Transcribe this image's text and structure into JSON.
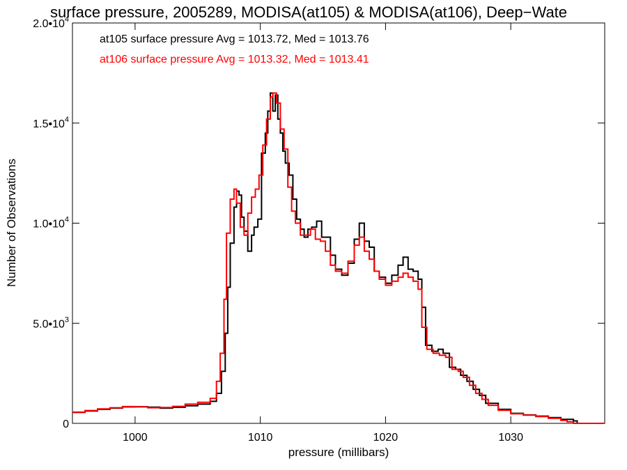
{
  "chart_data": {
    "type": "line",
    "step": true,
    "title": "surface pressure, 2005289, MODISA(at105) & MODISA(at106), Deep−Wate",
    "xlabel": "pressure (millibars)",
    "ylabel": "Number of Observations",
    "xlim": [
      995,
      1037.5
    ],
    "ylim": [
      0,
      20000
    ],
    "x_ticks": [
      1000,
      1010,
      1020,
      1030
    ],
    "x_tick_labels": [
      "1000",
      "1010",
      "1020",
      "1030"
    ],
    "y_ticks": [
      0,
      5000,
      10000,
      15000,
      20000
    ],
    "y_tick_labels": [
      {
        "mant": "0",
        "exp": ""
      },
      {
        "mant": "5.0•10",
        "exp": "3"
      },
      {
        "mant": "1.0•10",
        "exp": "4"
      },
      {
        "mant": "1.5•10",
        "exp": "4"
      },
      {
        "mant": "2.0•10",
        "exp": "4"
      }
    ],
    "grid": false,
    "legend_placement": "top-left",
    "series": [
      {
        "name": "at105 surface pressure Avg = 1013.72, Med = 1013.76",
        "color": "#000000",
        "points": [
          [
            995,
            550
          ],
          [
            996,
            620
          ],
          [
            997,
            700
          ],
          [
            998,
            760
          ],
          [
            999,
            820
          ],
          [
            1000,
            830
          ],
          [
            1001,
            810
          ],
          [
            1002,
            760
          ],
          [
            1003,
            800
          ],
          [
            1004,
            880
          ],
          [
            1005,
            960
          ],
          [
            1006,
            1100
          ],
          [
            1006.5,
            1500
          ],
          [
            1006.9,
            2600
          ],
          [
            1007.2,
            4500
          ],
          [
            1007.4,
            6800
          ],
          [
            1007.6,
            9000
          ],
          [
            1007.9,
            10800
          ],
          [
            1008.1,
            11600
          ],
          [
            1008.3,
            11400
          ],
          [
            1008.5,
            10300
          ],
          [
            1008.7,
            9600
          ],
          [
            1009.0,
            8600
          ],
          [
            1009.3,
            9400
          ],
          [
            1009.5,
            9800
          ],
          [
            1009.8,
            10200
          ],
          [
            1010.1,
            13500
          ],
          [
            1010.4,
            14500
          ],
          [
            1010.6,
            15600
          ],
          [
            1010.8,
            16500
          ],
          [
            1011.0,
            15600
          ],
          [
            1011.2,
            16400
          ],
          [
            1011.4,
            15200
          ],
          [
            1011.6,
            14500
          ],
          [
            1011.8,
            13600
          ],
          [
            1012.0,
            13000
          ],
          [
            1012.3,
            12400
          ],
          [
            1012.6,
            11200
          ],
          [
            1012.9,
            10200
          ],
          [
            1013.2,
            9700
          ],
          [
            1013.5,
            9300
          ],
          [
            1013.8,
            9700
          ],
          [
            1014.1,
            9800
          ],
          [
            1014.5,
            10100
          ],
          [
            1014.9,
            9300
          ],
          [
            1015.3,
            9300
          ],
          [
            1015.6,
            8400
          ],
          [
            1016.0,
            7700
          ],
          [
            1016.5,
            7400
          ],
          [
            1017.0,
            8000
          ],
          [
            1017.5,
            9200
          ],
          [
            1017.9,
            10000
          ],
          [
            1018.3,
            9100
          ],
          [
            1018.7,
            8800
          ],
          [
            1019.1,
            7600
          ],
          [
            1019.5,
            7300
          ],
          [
            1020.0,
            7000
          ],
          [
            1020.5,
            7400
          ],
          [
            1021.0,
            7900
          ],
          [
            1021.4,
            8300
          ],
          [
            1021.8,
            7700
          ],
          [
            1022.2,
            7600
          ],
          [
            1022.6,
            7200
          ],
          [
            1022.9,
            5800
          ],
          [
            1023.2,
            3900
          ],
          [
            1023.7,
            3600
          ],
          [
            1024.2,
            3700
          ],
          [
            1024.6,
            3500
          ],
          [
            1025.1,
            2800
          ],
          [
            1025.6,
            2700
          ],
          [
            1026.0,
            2400
          ],
          [
            1026.5,
            2100
          ],
          [
            1027.0,
            1700
          ],
          [
            1027.5,
            1400
          ],
          [
            1028.0,
            1000
          ],
          [
            1029.0,
            700
          ],
          [
            1030.0,
            500
          ],
          [
            1031.0,
            420
          ],
          [
            1032.0,
            360
          ],
          [
            1033.0,
            290
          ],
          [
            1034.0,
            200
          ],
          [
            1035.0,
            120
          ],
          [
            1035.3,
            0
          ]
        ]
      },
      {
        "name": "at106 surface pressure Avg = 1013.32, Med = 1013.41",
        "color": "#ff0000",
        "points": [
          [
            995,
            560
          ],
          [
            996,
            640
          ],
          [
            997,
            720
          ],
          [
            998,
            780
          ],
          [
            999,
            840
          ],
          [
            1000,
            820
          ],
          [
            1001,
            780
          ],
          [
            1002,
            790
          ],
          [
            1003,
            850
          ],
          [
            1004,
            960
          ],
          [
            1005,
            1050
          ],
          [
            1006,
            1250
          ],
          [
            1006.5,
            2100
          ],
          [
            1006.8,
            3500
          ],
          [
            1007.1,
            6200
          ],
          [
            1007.3,
            9500
          ],
          [
            1007.6,
            11200
          ],
          [
            1007.9,
            11700
          ],
          [
            1008.1,
            11000
          ],
          [
            1008.4,
            9800
          ],
          [
            1008.7,
            9400
          ],
          [
            1009.0,
            10500
          ],
          [
            1009.3,
            11300
          ],
          [
            1009.6,
            11700
          ],
          [
            1009.9,
            12400
          ],
          [
            1010.2,
            13900
          ],
          [
            1010.5,
            15200
          ],
          [
            1010.8,
            16300
          ],
          [
            1011.0,
            16500
          ],
          [
            1011.3,
            16000
          ],
          [
            1011.6,
            14700
          ],
          [
            1011.9,
            13700
          ],
          [
            1012.2,
            11800
          ],
          [
            1012.5,
            10600
          ],
          [
            1012.8,
            10000
          ],
          [
            1013.2,
            9400
          ],
          [
            1013.6,
            9400
          ],
          [
            1014.0,
            9700
          ],
          [
            1014.4,
            9200
          ],
          [
            1014.8,
            9100
          ],
          [
            1015.2,
            8600
          ],
          [
            1015.6,
            7900
          ],
          [
            1016.0,
            7600
          ],
          [
            1016.5,
            7500
          ],
          [
            1017.0,
            8100
          ],
          [
            1017.5,
            8900
          ],
          [
            1017.9,
            9300
          ],
          [
            1018.3,
            8600
          ],
          [
            1018.7,
            8200
          ],
          [
            1019.1,
            7600
          ],
          [
            1019.5,
            7200
          ],
          [
            1020.0,
            6900
          ],
          [
            1020.5,
            7100
          ],
          [
            1021.0,
            7300
          ],
          [
            1021.4,
            7500
          ],
          [
            1021.8,
            7300
          ],
          [
            1022.2,
            7100
          ],
          [
            1022.6,
            6700
          ],
          [
            1022.9,
            4800
          ],
          [
            1023.3,
            3700
          ],
          [
            1023.8,
            3500
          ],
          [
            1024.3,
            3400
          ],
          [
            1024.8,
            3300
          ],
          [
            1025.3,
            2700
          ],
          [
            1025.8,
            2600
          ],
          [
            1026.2,
            2300
          ],
          [
            1026.7,
            1900
          ],
          [
            1027.2,
            1500
          ],
          [
            1027.7,
            1200
          ],
          [
            1028.2,
            900
          ],
          [
            1029.0,
            650
          ],
          [
            1030.0,
            480
          ],
          [
            1031.0,
            410
          ],
          [
            1032.0,
            340
          ],
          [
            1033.0,
            250
          ],
          [
            1034.0,
            150
          ],
          [
            1034.5,
            80
          ],
          [
            1035.0,
            0
          ]
        ]
      }
    ]
  }
}
